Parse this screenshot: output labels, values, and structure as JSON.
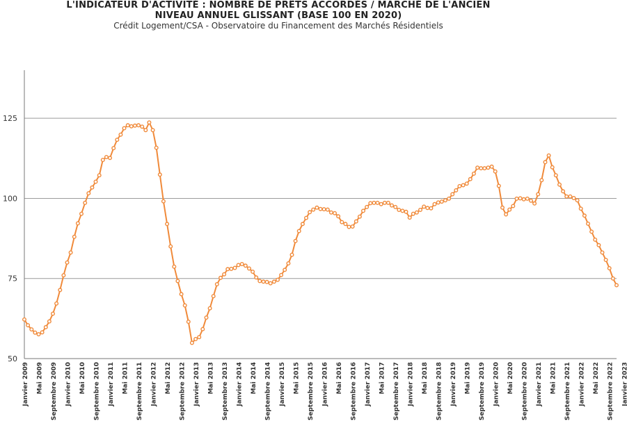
{
  "title_line1": "L'INDICATEUR D'ACTIVITÉ : NOMBRE DE PRÊTS ACCORDÉS / MARCHÉ DE L'ANCIEN",
  "title_line2": "NIVEAU ANNUEL GLISSANT (BASE 100 EN 2020)",
  "subtitle": "Crédit Logement/CSA - Observatoire du Financement des Marchés Résidentiels",
  "chart_data": {
    "type": "line",
    "title": "L'INDICATEUR D'ACTIVITÉ : NOMBRE DE PRÊTS ACCORDÉS / MARCHÉ DE L'ANCIEN — NIVEAU ANNUEL GLISSANT (BASE 100 EN 2020)",
    "subtitle": "Crédit Logement/CSA - Observatoire du Financement des Marchés Résidentiels",
    "ylim": [
      50,
      140
    ],
    "yticks": [
      50,
      75,
      100,
      125
    ],
    "grid": true,
    "color": "#f08a3a",
    "x_start": "Janvier 2009",
    "x_end": "Janvier 2023",
    "x_tick_labels": [
      "Janvier 2009",
      "Mai 2009",
      "Septembre 2009",
      "Janvier 2010",
      "Mai 2010",
      "Septembre 2010",
      "Janvier 2011",
      "Mai 2011",
      "Septembre 2011",
      "Janvier 2012",
      "Mai 2012",
      "Septembre 2012",
      "Janvier 2013",
      "Mai 2013",
      "Septembre 2013",
      "Janvier 2014",
      "Mai 2014",
      "Septembre 2014",
      "Janvier 2015",
      "Mai 2015",
      "Septembre 2015",
      "Janvier 2016",
      "Mai 2016",
      "Septembre 2016",
      "Janvier 2017",
      "Mai 2017",
      "Septembre 2017",
      "Janvier 2018",
      "Mai 2018",
      "Septembre 2018",
      "Janvier 2019",
      "Mai 2019",
      "Septembre 2019",
      "Janvier 2020",
      "Mai 2020",
      "Septembre 2020",
      "Janvier 2021",
      "Mai 2021",
      "Septembre 2021",
      "Janvier 2022",
      "Mai 2022",
      "Septembre 2022",
      "Janvier 2023"
    ],
    "values": [
      62.2,
      60.4,
      59.1,
      58.1,
      57.6,
      58.2,
      59.8,
      61.6,
      64.0,
      67.2,
      71.4,
      76.0,
      80.0,
      83.1,
      88.0,
      92.2,
      95.2,
      98.6,
      101.6,
      103.4,
      105.2,
      107.2,
      112.0,
      112.9,
      112.6,
      115.7,
      118.3,
      119.9,
      121.9,
      122.8,
      122.5,
      122.7,
      122.8,
      122.4,
      121.3,
      123.7,
      121.3,
      115.8,
      107.4,
      99.1,
      92.0,
      85.0,
      78.7,
      74.2,
      70.1,
      66.6,
      61.5,
      54.9,
      56.1,
      56.7,
      59.2,
      62.8,
      65.7,
      69.5,
      73.2,
      75.2,
      76.3,
      77.9,
      78.0,
      78.3,
      79.2,
      79.5,
      79.0,
      78.1,
      77.1,
      75.3,
      74.2,
      74.0,
      73.9,
      73.5,
      74.0,
      74.6,
      76.1,
      77.7,
      79.7,
      82.4,
      86.7,
      89.8,
      92.0,
      93.9,
      95.7,
      96.5,
      97.1,
      96.7,
      96.6,
      96.5,
      95.6,
      95.4,
      94.4,
      92.6,
      92.0,
      91.1,
      91.2,
      92.8,
      94.3,
      96.1,
      97.3,
      98.5,
      98.6,
      98.6,
      98.2,
      98.6,
      98.6,
      97.8,
      97.3,
      96.4,
      96.1,
      95.8,
      94.0,
      95.2,
      95.6,
      96.4,
      97.4,
      97.0,
      96.9,
      98.2,
      98.7,
      99.0,
      99.4,
      99.9,
      101.3,
      102.5,
      103.8,
      104.1,
      104.6,
      106.0,
      107.7,
      109.6,
      109.4,
      109.4,
      109.6,
      109.9,
      108.4,
      103.9,
      97.1,
      95.0,
      96.5,
      97.6,
      99.9,
      100.0,
      99.7,
      99.9,
      99.3,
      98.4,
      101.3,
      105.7,
      111.3,
      113.4,
      109.7,
      107.2,
      104.3,
      102.2,
      100.6,
      100.6,
      100.1,
      99.4,
      96.8,
      94.6,
      92.1,
      89.6,
      87.1,
      85.4,
      83.1,
      80.8,
      78.2,
      75.0,
      72.9
    ]
  }
}
